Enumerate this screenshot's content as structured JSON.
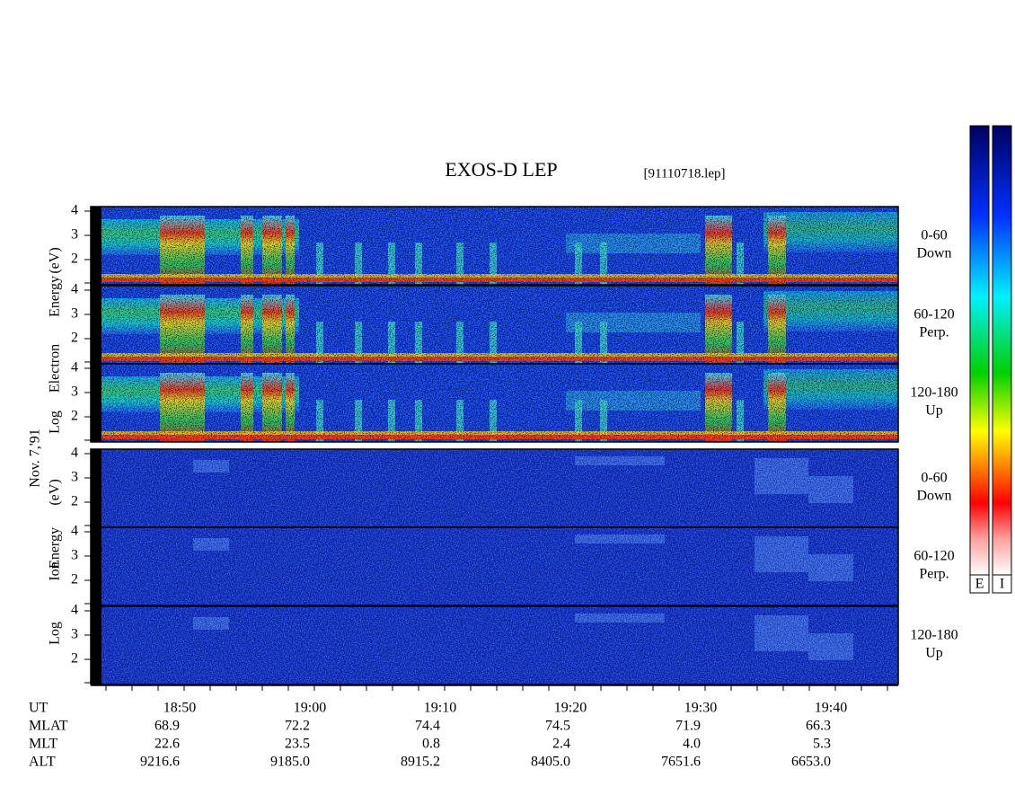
{
  "title": "EXOS-D LEP",
  "file": "[91110718.lep]",
  "date": "Nov. 7,'91",
  "energy_ticks": [
    "4",
    "3",
    "2"
  ],
  "electron": {
    "axis_label": [
      "Log",
      "Electron",
      "Energy",
      "(eV)"
    ],
    "panels": [
      {
        "angle": "0-60",
        "direction": "Down"
      },
      {
        "angle": "60-120",
        "direction": "Perp."
      },
      {
        "angle": "120-180",
        "direction": "Up"
      }
    ]
  },
  "ion": {
    "axis_label": [
      "Log",
      "Ion",
      "Energy",
      "(eV)"
    ],
    "panels": [
      {
        "angle": "0-60",
        "direction": "Down"
      },
      {
        "angle": "60-120",
        "direction": "Perp."
      },
      {
        "angle": "120-180",
        "direction": "Up"
      }
    ]
  },
  "ephemeris": [
    {
      "label": "UT",
      "values": [
        "18:50",
        "19:00",
        "19:10",
        "19:20",
        "19:30",
        "19:40"
      ]
    },
    {
      "label": "MLAT",
      "values": [
        "68.9",
        "72.2",
        "74.4",
        "74.5",
        "71.9",
        "66.3"
      ]
    },
    {
      "label": "MLT",
      "values": [
        "22.6",
        "23.5",
        "0.8",
        "2.4",
        "4.0",
        "5.3"
      ]
    },
    {
      "label": "ALT",
      "values": [
        "9216.6",
        "9185.0",
        "8915.2",
        "8405.0",
        "7651.6",
        "6653.0"
      ]
    }
  ],
  "colorbars": [
    "E",
    "I"
  ]
}
